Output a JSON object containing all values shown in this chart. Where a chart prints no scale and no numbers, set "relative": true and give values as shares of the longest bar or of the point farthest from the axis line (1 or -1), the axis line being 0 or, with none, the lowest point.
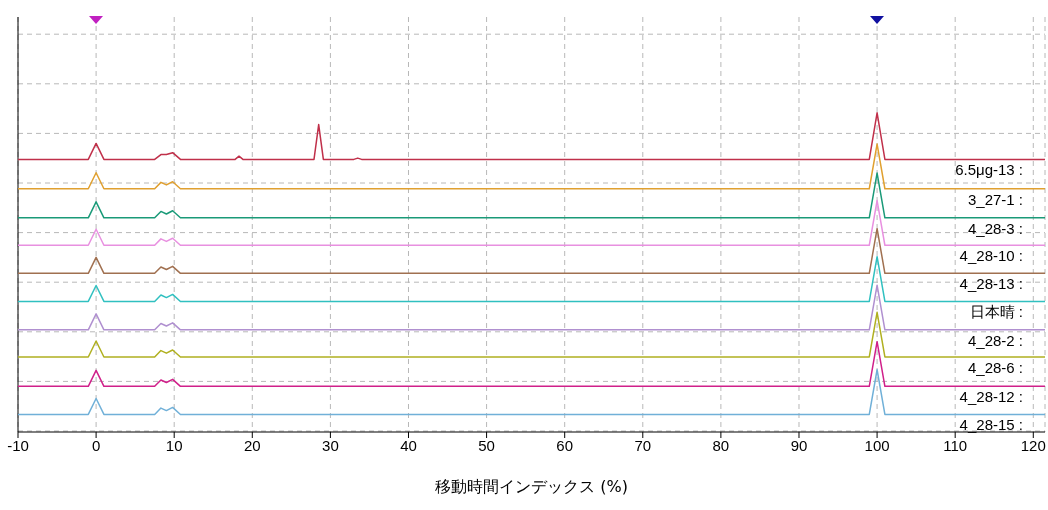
{
  "chart_data": {
    "type": "line",
    "relative": true,
    "xlabel": "移動時間インデックス (%)",
    "xlim": [
      -10,
      121.5
    ],
    "xticks": [
      -10,
      0,
      10,
      20,
      30,
      40,
      50,
      60,
      70,
      80,
      90,
      100,
      110,
      120
    ],
    "grid": true,
    "marker": "none",
    "line_style": "solid",
    "x": [
      -10,
      -1,
      0,
      1,
      7.5,
      8.3,
      9,
      9.8,
      10.8,
      99,
      100,
      101,
      121.5
    ],
    "series": [
      {
        "name": "6.5μg-13 :",
        "color": "#c0304a",
        "x": [
          -10,
          -1,
          0,
          1,
          7.5,
          8.3,
          9,
          9.8,
          10.8,
          17.8,
          18.3,
          18.8,
          27.9,
          28.5,
          29.1,
          33,
          33.5,
          34,
          99,
          100,
          101,
          121.5
        ],
        "values": [
          0.854,
          0.854,
          0.904,
          0.854,
          0.854,
          0.869,
          0.869,
          0.875,
          0.854,
          0.854,
          0.864,
          0.854,
          0.854,
          0.963,
          0.854,
          0.854,
          0.858,
          0.854,
          0.854,
          1,
          0.854,
          0.854
        ]
      },
      {
        "name": "3_27-1 :",
        "color": "#e0a030",
        "values": [
          0.762,
          0.762,
          0.812,
          0.762,
          0.762,
          0.782,
          0.774,
          0.784,
          0.762,
          0.762,
          0.902,
          0.762,
          0.762
        ]
      },
      {
        "name": "4_28-3 :",
        "color": "#1a9a78",
        "values": [
          0.671,
          0.671,
          0.721,
          0.671,
          0.671,
          0.691,
          0.683,
          0.693,
          0.671,
          0.671,
          0.811,
          0.671,
          0.671
        ]
      },
      {
        "name": "4_28-10 :",
        "color": "#e890e0",
        "values": [
          0.585,
          0.585,
          0.635,
          0.585,
          0.585,
          0.605,
          0.597,
          0.607,
          0.585,
          0.585,
          0.725,
          0.585,
          0.585
        ]
      },
      {
        "name": "4_28-13 :",
        "color": "#a07050",
        "values": [
          0.497,
          0.497,
          0.547,
          0.497,
          0.497,
          0.517,
          0.509,
          0.519,
          0.497,
          0.497,
          0.637,
          0.497,
          0.497
        ]
      },
      {
        "name": "日本晴 :",
        "color": "#30c0c0",
        "values": [
          0.409,
          0.409,
          0.459,
          0.409,
          0.409,
          0.429,
          0.421,
          0.431,
          0.409,
          0.409,
          0.549,
          0.409,
          0.409
        ]
      },
      {
        "name": "4_28-2 :",
        "color": "#b090d0",
        "values": [
          0.32,
          0.32,
          0.37,
          0.32,
          0.32,
          0.34,
          0.332,
          0.342,
          0.32,
          0.32,
          0.46,
          0.32,
          0.32
        ]
      },
      {
        "name": "4_28-6 :",
        "color": "#b0b020",
        "values": [
          0.235,
          0.235,
          0.285,
          0.235,
          0.235,
          0.255,
          0.247,
          0.257,
          0.235,
          0.235,
          0.375,
          0.235,
          0.235
        ]
      },
      {
        "name": "4_28-12 :",
        "color": "#d0208a",
        "values": [
          0.143,
          0.143,
          0.193,
          0.143,
          0.143,
          0.163,
          0.155,
          0.165,
          0.143,
          0.143,
          0.283,
          0.143,
          0.143
        ]
      },
      {
        "name": "4_28-15 :",
        "color": "#70b0d8",
        "values": [
          0.055,
          0.055,
          0.105,
          0.055,
          0.055,
          0.075,
          0.067,
          0.077,
          0.055,
          0.055,
          0.195,
          0.055,
          0.055
        ]
      }
    ]
  }
}
